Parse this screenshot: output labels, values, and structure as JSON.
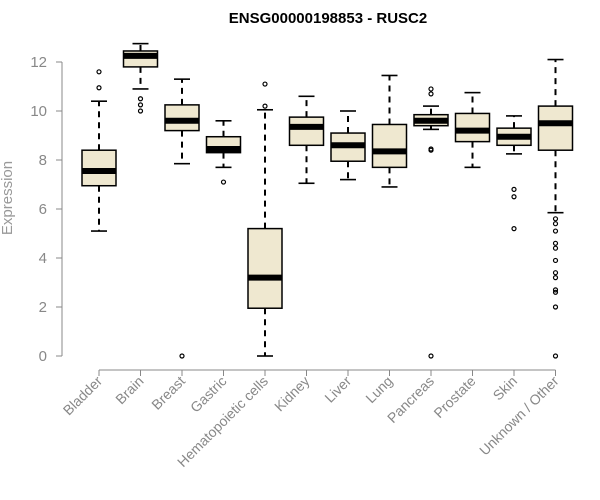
{
  "chart_data": {
    "type": "box",
    "title": "ENSG00000198853 - RUSC2",
    "xlabel": "",
    "ylabel": "Expression",
    "ylim": [
      0,
      12
    ],
    "yticks": [
      0,
      2,
      4,
      6,
      8,
      10,
      12
    ],
    "categories": [
      "Bladder",
      "Brain",
      "Breast",
      "Gastric",
      "Hematopoietic cells",
      "Kidney",
      "Liver",
      "Lung",
      "Pancreas",
      "Prostate",
      "Skin",
      "Unknown / Other"
    ],
    "boxes": [
      {
        "category": "Bladder",
        "whisker_low": 5.1,
        "q1": 6.95,
        "median": 7.55,
        "q3": 8.4,
        "whisker_high": 10.4,
        "outliers": [
          10.95,
          11.6
        ]
      },
      {
        "category": "Brain",
        "whisker_low": 10.9,
        "q1": 11.8,
        "median": 12.25,
        "q3": 12.45,
        "whisker_high": 12.75,
        "outliers": [
          10.0,
          10.25,
          10.5
        ]
      },
      {
        "category": "Breast",
        "whisker_low": 7.85,
        "q1": 9.2,
        "median": 9.6,
        "q3": 10.25,
        "whisker_high": 11.3,
        "outliers": [
          0.0
        ]
      },
      {
        "category": "Gastric",
        "whisker_low": 7.7,
        "q1": 8.3,
        "median": 8.45,
        "q3": 8.95,
        "whisker_high": 9.6,
        "outliers": [
          7.1
        ]
      },
      {
        "category": "Hematopoietic cells",
        "whisker_low": 0.0,
        "q1": 1.95,
        "median": 3.2,
        "q3": 5.2,
        "whisker_high": 10.05,
        "outliers": [
          10.2,
          11.1
        ]
      },
      {
        "category": "Kidney",
        "whisker_low": 7.05,
        "q1": 8.6,
        "median": 9.35,
        "q3": 9.75,
        "whisker_high": 10.6,
        "outliers": []
      },
      {
        "category": "Liver",
        "whisker_low": 7.2,
        "q1": 7.95,
        "median": 8.6,
        "q3": 9.1,
        "whisker_high": 10.0,
        "outliers": []
      },
      {
        "category": "Lung",
        "whisker_low": 6.9,
        "q1": 7.7,
        "median": 8.35,
        "q3": 9.45,
        "whisker_high": 11.45,
        "outliers": []
      },
      {
        "category": "Pancreas",
        "whisker_low": 9.25,
        "q1": 9.4,
        "median": 9.6,
        "q3": 9.85,
        "whisker_high": 10.2,
        "outliers": [
          0.0,
          8.4,
          8.45,
          10.7,
          10.9
        ]
      },
      {
        "category": "Prostate",
        "whisker_low": 7.7,
        "q1": 8.75,
        "median": 9.2,
        "q3": 9.9,
        "whisker_high": 10.75,
        "outliers": []
      },
      {
        "category": "Skin",
        "whisker_low": 8.25,
        "q1": 8.6,
        "median": 8.95,
        "q3": 9.3,
        "whisker_high": 9.8,
        "outliers": [
          5.2,
          6.5,
          6.8
        ]
      },
      {
        "category": "Unknown / Other",
        "whisker_low": 5.85,
        "q1": 8.4,
        "median": 9.5,
        "q3": 10.2,
        "whisker_high": 12.1,
        "outliers": [
          0.0,
          2.0,
          2.6,
          2.7,
          3.2,
          3.4,
          3.9,
          4.4,
          4.6,
          5.1,
          5.4,
          5.6
        ]
      }
    ],
    "colors": {
      "box_fill": "#efe8d0",
      "box_stroke": "#000000",
      "axis": "#888888",
      "title": "#000000"
    },
    "grid": false,
    "legend": "none"
  }
}
